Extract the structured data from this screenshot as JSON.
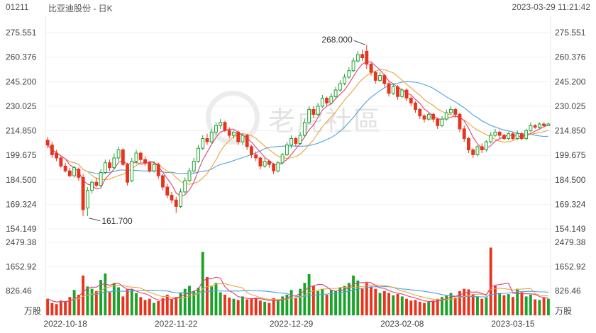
{
  "header": {
    "code": "01211",
    "name": "比亚迪股份 - 日K",
    "datetime": "2023-03-29 11:21:42"
  },
  "watermark": {
    "text": "老虎社區",
    "logo_icon": "tiger-logo-icon"
  },
  "chart_data": {
    "type": "candlestick",
    "price_ticks": [
      "275.551",
      "260.376",
      "245.200",
      "230.025",
      "214.850",
      "199.675",
      "184.500",
      "169.324",
      "154.149"
    ],
    "price_range": [
      154.149,
      275.551
    ],
    "volume_ticks": [
      "2479.38",
      "1652.92",
      "826.46"
    ],
    "volume_range": [
      0,
      2479.38
    ],
    "volume_unit": "万股",
    "x_labels": [
      {
        "label": "2022-10-18",
        "index": 4
      },
      {
        "label": "2022-11-22",
        "index": 29
      },
      {
        "label": "2022-12-29",
        "index": 55
      },
      {
        "label": "2023-02-08",
        "index": 80
      },
      {
        "label": "2023-03-15",
        "index": 105
      }
    ],
    "annotations": [
      {
        "text": "268.000",
        "index": 72,
        "value": 268.0
      },
      {
        "text": "161.700",
        "index": 9,
        "value": 161.7
      }
    ],
    "colors": {
      "up": "#1aa32a",
      "down": "#e8331d",
      "ma5": "#e0407a",
      "ma10": "#f0a23c",
      "ma20": "#4aa3e0"
    },
    "candles": [
      [
        209,
        206,
        211,
        204,
        "d"
      ],
      [
        206,
        200,
        208,
        198,
        "d"
      ],
      [
        201,
        198,
        203,
        196,
        "d"
      ],
      [
        198,
        193,
        199,
        192,
        "d"
      ],
      [
        193,
        190,
        195,
        189,
        "d"
      ],
      [
        190,
        187,
        192,
        186,
        "d"
      ],
      [
        187,
        192,
        193,
        186,
        "u"
      ],
      [
        191,
        186,
        192,
        184,
        "d"
      ],
      [
        186,
        166,
        188,
        162,
        "d"
      ],
      [
        167,
        178,
        180,
        162,
        "u"
      ],
      [
        178,
        183,
        184,
        176,
        "u"
      ],
      [
        183,
        181,
        186,
        180,
        "d"
      ],
      [
        181,
        189,
        191,
        180,
        "u"
      ],
      [
        189,
        195,
        197,
        188,
        "u"
      ],
      [
        195,
        192,
        197,
        190,
        "d"
      ],
      [
        192,
        198,
        201,
        191,
        "u"
      ],
      [
        198,
        203,
        205,
        196,
        "u"
      ],
      [
        203,
        194,
        204,
        193,
        "d"
      ],
      [
        194,
        183,
        195,
        181,
        "d"
      ],
      [
        184,
        196,
        198,
        183,
        "u"
      ],
      [
        196,
        201,
        203,
        194,
        "u"
      ],
      [
        201,
        197,
        202,
        195,
        "d"
      ],
      [
        197,
        195,
        199,
        193,
        "d"
      ],
      [
        195,
        190,
        196,
        189,
        "d"
      ],
      [
        190,
        194,
        196,
        189,
        "u"
      ],
      [
        194,
        187,
        195,
        185,
        "d"
      ],
      [
        187,
        180,
        188,
        178,
        "d"
      ],
      [
        180,
        175,
        182,
        173,
        "d"
      ],
      [
        175,
        172,
        177,
        170,
        "d"
      ],
      [
        172,
        168,
        174,
        164,
        "d"
      ],
      [
        168,
        177,
        179,
        167,
        "u"
      ],
      [
        177,
        184,
        186,
        176,
        "u"
      ],
      [
        184,
        190,
        192,
        183,
        "u"
      ],
      [
        190,
        196,
        198,
        189,
        "u"
      ],
      [
        196,
        204,
        206,
        195,
        "u"
      ],
      [
        204,
        210,
        212,
        203,
        "u"
      ],
      [
        210,
        208,
        213,
        206,
        "d"
      ],
      [
        208,
        214,
        216,
        207,
        "u"
      ],
      [
        214,
        218,
        220,
        212,
        "u"
      ],
      [
        218,
        220,
        222,
        216,
        "u"
      ],
      [
        220,
        215,
        221,
        214,
        "d"
      ],
      [
        215,
        212,
        217,
        210,
        "d"
      ],
      [
        212,
        214,
        215,
        210,
        "u"
      ],
      [
        214,
        208,
        215,
        206,
        "d"
      ],
      [
        208,
        212,
        213,
        206,
        "u"
      ],
      [
        212,
        205,
        213,
        203,
        "d"
      ],
      [
        205,
        200,
        206,
        198,
        "d"
      ],
      [
        200,
        198,
        202,
        196,
        "d"
      ],
      [
        198,
        193,
        199,
        191,
        "d"
      ],
      [
        193,
        196,
        198,
        192,
        "u"
      ],
      [
        196,
        194,
        197,
        192,
        "d"
      ],
      [
        194,
        190,
        195,
        188,
        "d"
      ],
      [
        190,
        195,
        196,
        189,
        "u"
      ],
      [
        195,
        200,
        201,
        194,
        "u"
      ],
      [
        200,
        206,
        208,
        199,
        "u"
      ],
      [
        206,
        210,
        212,
        204,
        "u"
      ],
      [
        210,
        207,
        211,
        205,
        "d"
      ],
      [
        207,
        212,
        214,
        206,
        "u"
      ],
      [
        212,
        220,
        222,
        211,
        "u"
      ],
      [
        220,
        228,
        230,
        219,
        "u"
      ],
      [
        228,
        225,
        230,
        223,
        "d"
      ],
      [
        225,
        230,
        232,
        224,
        "u"
      ],
      [
        230,
        235,
        237,
        229,
        "u"
      ],
      [
        235,
        232,
        236,
        230,
        "d"
      ],
      [
        232,
        236,
        238,
        231,
        "u"
      ],
      [
        236,
        240,
        242,
        235,
        "u"
      ],
      [
        240,
        244,
        246,
        239,
        "u"
      ],
      [
        244,
        248,
        250,
        243,
        "u"
      ],
      [
        248,
        252,
        254,
        247,
        "u"
      ],
      [
        252,
        258,
        260,
        251,
        "u"
      ],
      [
        258,
        262,
        264,
        257,
        "u"
      ],
      [
        262,
        260,
        265,
        258,
        "d"
      ],
      [
        264,
        256,
        268,
        253,
        "d"
      ],
      [
        256,
        251,
        257,
        249,
        "d"
      ],
      [
        251,
        246,
        252,
        244,
        "d"
      ],
      [
        246,
        249,
        251,
        245,
        "u"
      ],
      [
        249,
        244,
        250,
        242,
        "d"
      ],
      [
        244,
        238,
        245,
        236,
        "d"
      ],
      [
        238,
        242,
        244,
        237,
        "u"
      ],
      [
        242,
        236,
        243,
        234,
        "d"
      ],
      [
        236,
        240,
        241,
        235,
        "u"
      ],
      [
        240,
        235,
        241,
        233,
        "d"
      ],
      [
        235,
        232,
        236,
        230,
        "d"
      ],
      [
        232,
        228,
        233,
        226,
        "d"
      ],
      [
        228,
        224,
        229,
        222,
        "d"
      ],
      [
        224,
        222,
        225,
        220,
        "d"
      ],
      [
        222,
        225,
        226,
        221,
        "u"
      ],
      [
        225,
        222,
        226,
        220,
        "d"
      ],
      [
        222,
        218,
        223,
        216,
        "d"
      ],
      [
        218,
        222,
        224,
        217,
        "u"
      ],
      [
        222,
        226,
        228,
        221,
        "u"
      ],
      [
        226,
        228,
        230,
        225,
        "u"
      ],
      [
        228,
        225,
        229,
        223,
        "d"
      ],
      [
        225,
        216,
        226,
        214,
        "d"
      ],
      [
        216,
        210,
        218,
        208,
        "d"
      ],
      [
        210,
        203,
        211,
        201,
        "d"
      ],
      [
        203,
        200,
        204,
        198,
        "d"
      ],
      [
        200,
        205,
        206,
        199,
        "u"
      ],
      [
        205,
        203,
        207,
        201,
        "d"
      ],
      [
        203,
        208,
        209,
        202,
        "u"
      ],
      [
        208,
        212,
        214,
        207,
        "u"
      ],
      [
        212,
        214,
        216,
        211,
        "u"
      ],
      [
        214,
        212,
        215,
        210,
        "d"
      ],
      [
        212,
        210,
        213,
        209,
        "d"
      ],
      [
        210,
        213,
        214,
        209,
        "u"
      ],
      [
        213,
        210,
        214,
        209,
        "d"
      ],
      [
        210,
        213,
        215,
        209,
        "u"
      ],
      [
        213,
        210,
        214,
        209,
        "d"
      ],
      [
        210,
        215,
        216,
        209,
        "u"
      ],
      [
        215,
        218,
        220,
        214,
        "u"
      ],
      [
        218,
        217,
        219,
        216,
        "d"
      ],
      [
        217,
        219,
        220,
        216,
        "u"
      ],
      [
        219,
        218,
        220,
        217,
        "d"
      ],
      [
        218,
        219,
        220,
        218,
        "u"
      ]
    ],
    "volumes": [
      [
        560,
        "d"
      ],
      [
        420,
        "d"
      ],
      [
        380,
        "d"
      ],
      [
        500,
        "d"
      ],
      [
        470,
        "d"
      ],
      [
        620,
        "d"
      ],
      [
        860,
        "u"
      ],
      [
        700,
        "d"
      ],
      [
        1350,
        "d"
      ],
      [
        980,
        "u"
      ],
      [
        900,
        "u"
      ],
      [
        820,
        "d"
      ],
      [
        1200,
        "u"
      ],
      [
        1420,
        "u"
      ],
      [
        780,
        "d"
      ],
      [
        1100,
        "u"
      ],
      [
        950,
        "u"
      ],
      [
        640,
        "d"
      ],
      [
        900,
        "d"
      ],
      [
        880,
        "u"
      ],
      [
        760,
        "u"
      ],
      [
        620,
        "d"
      ],
      [
        520,
        "d"
      ],
      [
        560,
        "d"
      ],
      [
        420,
        "u"
      ],
      [
        480,
        "d"
      ],
      [
        580,
        "d"
      ],
      [
        700,
        "d"
      ],
      [
        540,
        "d"
      ],
      [
        620,
        "d"
      ],
      [
        760,
        "u"
      ],
      [
        900,
        "u"
      ],
      [
        1000,
        "u"
      ],
      [
        820,
        "u"
      ],
      [
        940,
        "u"
      ],
      [
        2150,
        "u"
      ],
      [
        1300,
        "d"
      ],
      [
        980,
        "u"
      ],
      [
        1100,
        "u"
      ],
      [
        780,
        "u"
      ],
      [
        700,
        "d"
      ],
      [
        600,
        "d"
      ],
      [
        560,
        "u"
      ],
      [
        520,
        "d"
      ],
      [
        640,
        "u"
      ],
      [
        540,
        "d"
      ],
      [
        560,
        "d"
      ],
      [
        600,
        "d"
      ],
      [
        500,
        "d"
      ],
      [
        460,
        "u"
      ],
      [
        420,
        "d"
      ],
      [
        580,
        "d"
      ],
      [
        520,
        "u"
      ],
      [
        640,
        "u"
      ],
      [
        700,
        "u"
      ],
      [
        860,
        "u"
      ],
      [
        600,
        "d"
      ],
      [
        900,
        "u"
      ],
      [
        1100,
        "u"
      ],
      [
        1400,
        "u"
      ],
      [
        1000,
        "d"
      ],
      [
        820,
        "u"
      ],
      [
        900,
        "u"
      ],
      [
        700,
        "d"
      ],
      [
        860,
        "u"
      ],
      [
        820,
        "u"
      ],
      [
        940,
        "u"
      ],
      [
        1000,
        "u"
      ],
      [
        1100,
        "u"
      ],
      [
        1350,
        "u"
      ],
      [
        1180,
        "u"
      ],
      [
        900,
        "d"
      ],
      [
        1100,
        "d"
      ],
      [
        980,
        "d"
      ],
      [
        900,
        "d"
      ],
      [
        760,
        "u"
      ],
      [
        820,
        "d"
      ],
      [
        760,
        "d"
      ],
      [
        680,
        "u"
      ],
      [
        720,
        "d"
      ],
      [
        640,
        "u"
      ],
      [
        560,
        "d"
      ],
      [
        500,
        "d"
      ],
      [
        520,
        "d"
      ],
      [
        460,
        "d"
      ],
      [
        420,
        "d"
      ],
      [
        460,
        "u"
      ],
      [
        500,
        "d"
      ],
      [
        560,
        "d"
      ],
      [
        620,
        "u"
      ],
      [
        680,
        "u"
      ],
      [
        760,
        "u"
      ],
      [
        600,
        "d"
      ],
      [
        820,
        "d"
      ],
      [
        900,
        "d"
      ],
      [
        880,
        "d"
      ],
      [
        720,
        "d"
      ],
      [
        640,
        "u"
      ],
      [
        560,
        "d"
      ],
      [
        600,
        "u"
      ],
      [
        2300,
        "d"
      ],
      [
        1000,
        "d"
      ],
      [
        760,
        "u"
      ],
      [
        680,
        "d"
      ],
      [
        720,
        "u"
      ],
      [
        620,
        "d"
      ],
      [
        900,
        "u"
      ],
      [
        780,
        "d"
      ],
      [
        640,
        "u"
      ],
      [
        700,
        "u"
      ],
      [
        540,
        "d"
      ],
      [
        520,
        "u"
      ],
      [
        600,
        "d"
      ],
      [
        560,
        "u"
      ]
    ]
  }
}
